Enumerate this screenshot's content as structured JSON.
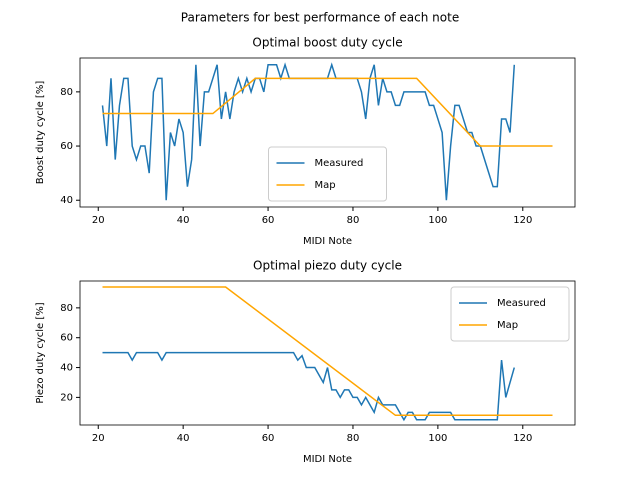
{
  "title": "Parameters for best performance of each note",
  "chart_data": [
    {
      "type": "line",
      "title": "Optimal boost duty cycle",
      "xlabel": "MIDI Note",
      "ylabel": "Boost duty cycle [%]",
      "xlim": [
        15.7,
        132.3
      ],
      "ylim": [
        37.5,
        92.5
      ],
      "xticks": [
        20,
        40,
        60,
        80,
        100,
        120
      ],
      "yticks": [
        40,
        60,
        80
      ],
      "legend": "lower center",
      "series": [
        {
          "name": "Measured",
          "color": "#1f77b4",
          "x": [
            21,
            22,
            23,
            24,
            25,
            26,
            27,
            28,
            29,
            30,
            31,
            32,
            33,
            34,
            35,
            36,
            37,
            38,
            39,
            40,
            41,
            42,
            43,
            44,
            45,
            46,
            47,
            48,
            49,
            50,
            51,
            52,
            53,
            54,
            55,
            56,
            57,
            58,
            59,
            60,
            61,
            62,
            63,
            64,
            65,
            66,
            67,
            68,
            69,
            70,
            71,
            72,
            73,
            74,
            75,
            76,
            77,
            78,
            79,
            80,
            81,
            82,
            83,
            84,
            85,
            86,
            87,
            88,
            89,
            90,
            91,
            92,
            93,
            94,
            95,
            96,
            97,
            98,
            99,
            100,
            101,
            102,
            103,
            104,
            105,
            106,
            107,
            108,
            109,
            110,
            111,
            112,
            113,
            114,
            115,
            116,
            117,
            118
          ],
          "values": [
            75,
            60,
            85,
            55,
            75,
            85,
            85,
            60,
            55,
            60,
            60,
            50,
            80,
            85,
            85,
            40,
            65,
            60,
            70,
            65,
            45,
            55,
            90,
            60,
            80,
            80,
            85,
            90,
            70,
            80,
            70,
            80,
            85,
            80,
            85,
            80,
            85,
            85,
            80,
            90,
            90,
            90,
            85,
            90,
            85,
            85,
            85,
            85,
            85,
            85,
            85,
            85,
            85,
            85,
            90,
            85,
            85,
            85,
            85,
            85,
            85,
            80,
            70,
            85,
            90,
            75,
            85,
            80,
            80,
            75,
            75,
            80,
            80,
            80,
            80,
            80,
            80,
            75,
            75,
            70,
            65,
            40,
            60,
            75,
            75,
            70,
            65,
            65,
            60,
            60,
            55,
            50,
            45,
            45,
            70,
            70,
            65,
            90
          ]
        },
        {
          "name": "Map",
          "color": "#ffa500",
          "x": [
            21,
            47,
            57,
            95,
            110,
            127
          ],
          "values": [
            72,
            72,
            85,
            85,
            60,
            60
          ]
        }
      ]
    },
    {
      "type": "line",
      "title": "Optimal piezo duty cycle",
      "xlabel": "MIDI Note",
      "ylabel": "Piezo duty cycle [%]",
      "xlim": [
        15.7,
        132.3
      ],
      "ylim": [
        1.5,
        98
      ],
      "xticks": [
        20,
        40,
        60,
        80,
        100,
        120
      ],
      "yticks": [
        20,
        40,
        60,
        80
      ],
      "legend": "upper right",
      "series": [
        {
          "name": "Measured",
          "color": "#1f77b4",
          "x": [
            21,
            22,
            23,
            24,
            25,
            26,
            27,
            28,
            29,
            30,
            31,
            32,
            33,
            34,
            35,
            36,
            37,
            38,
            39,
            40,
            41,
            42,
            43,
            44,
            45,
            46,
            47,
            48,
            49,
            50,
            51,
            52,
            53,
            54,
            55,
            56,
            57,
            58,
            59,
            60,
            61,
            62,
            63,
            64,
            65,
            66,
            67,
            68,
            69,
            70,
            71,
            72,
            73,
            74,
            75,
            76,
            77,
            78,
            79,
            80,
            81,
            82,
            83,
            84,
            85,
            86,
            87,
            88,
            89,
            90,
            91,
            92,
            93,
            94,
            95,
            96,
            97,
            98,
            99,
            100,
            101,
            102,
            103,
            104,
            105,
            106,
            107,
            108,
            109,
            110,
            111,
            112,
            113,
            114,
            115,
            116,
            117,
            118
          ],
          "values": [
            50,
            50,
            50,
            50,
            50,
            50,
            50,
            45,
            50,
            50,
            50,
            50,
            50,
            50,
            45,
            50,
            50,
            50,
            50,
            50,
            50,
            50,
            50,
            50,
            50,
            50,
            50,
            50,
            50,
            50,
            50,
            50,
            50,
            50,
            50,
            50,
            50,
            50,
            50,
            50,
            50,
            50,
            50,
            50,
            50,
            50,
            45,
            48,
            40,
            40,
            40,
            35,
            30,
            40,
            25,
            25,
            20,
            25,
            25,
            20,
            20,
            15,
            20,
            15,
            10,
            20,
            15,
            15,
            15,
            15,
            10,
            5,
            10,
            10,
            5,
            5,
            5,
            10,
            10,
            10,
            10,
            10,
            10,
            5,
            5,
            5,
            5,
            5,
            5,
            5,
            5,
            5,
            5,
            5,
            45,
            20,
            30,
            40
          ]
        },
        {
          "name": "Map",
          "color": "#ffa500",
          "x": [
            21,
            50,
            90,
            127
          ],
          "values": [
            94,
            94,
            8,
            8
          ]
        }
      ]
    }
  ]
}
